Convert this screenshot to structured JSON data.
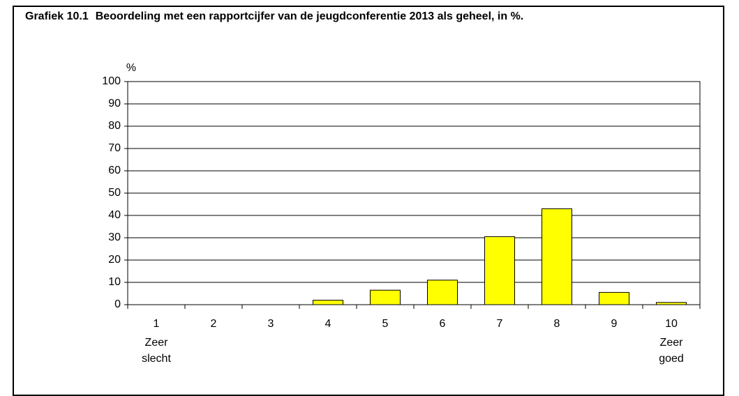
{
  "chart_data": {
    "type": "bar",
    "label": "Grafiek 10.1",
    "title": "Beoordeling met een rapportcijfer van de jeugdconferentie 2013 als geheel, in %.",
    "y_label": "%",
    "categories": [
      "1",
      "2",
      "3",
      "4",
      "5",
      "6",
      "7",
      "8",
      "9",
      "10"
    ],
    "values": [
      0,
      0,
      0,
      2,
      6.5,
      11,
      30.5,
      43,
      5.5,
      1
    ],
    "annotations": [
      "Zeer slecht",
      "Zeer goed"
    ],
    "color": "#ffff00",
    "ylim": [
      0,
      100
    ],
    "yticks": [
      0,
      10,
      20,
      30,
      40,
      50,
      60,
      70,
      80,
      90,
      100
    ],
    "grid": true
  }
}
